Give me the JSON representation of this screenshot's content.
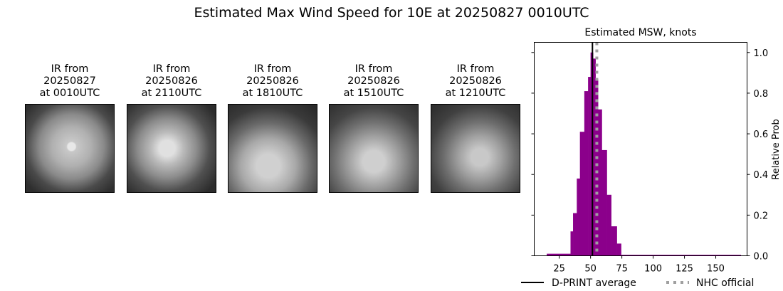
{
  "title": "Estimated Max Wind Speed for 10E at 20250827 0010UTC",
  "panels": [
    {
      "title": "IR from\n20250827\nat 0010UTC"
    },
    {
      "title": "IR from\n20250826\nat 2110UTC"
    },
    {
      "title": "IR from\n20250826\nat 1810UTC"
    },
    {
      "title": "IR from\n20250826\nat 1510UTC"
    },
    {
      "title": "IR from\n20250826\nat 1210UTC"
    }
  ],
  "chart_data": {
    "type": "bar",
    "title": "Estimated MSW, knots",
    "xlabel": "",
    "ylabel": "Relative Prob",
    "xlim": [
      5,
      175
    ],
    "ylim": [
      0,
      1.05
    ],
    "xticks": [
      25,
      50,
      75,
      100,
      125,
      150
    ],
    "yticks": [
      0.0,
      0.2,
      0.4,
      0.6,
      0.8,
      1.0
    ],
    "bar_color": "#8b008b",
    "bins": [
      {
        "from": 15,
        "to": 34,
        "value": 0.01
      },
      {
        "from": 34,
        "to": 36,
        "value": 0.12
      },
      {
        "from": 36,
        "to": 39,
        "value": 0.21
      },
      {
        "from": 39,
        "to": 41.5,
        "value": 0.38
      },
      {
        "from": 41.5,
        "to": 45,
        "value": 0.61
      },
      {
        "from": 45,
        "to": 48,
        "value": 0.81
      },
      {
        "from": 48,
        "to": 50,
        "value": 0.88
      },
      {
        "from": 50,
        "to": 52,
        "value": 1.0
      },
      {
        "from": 52,
        "to": 54,
        "value": 0.97
      },
      {
        "from": 54,
        "to": 56,
        "value": 0.87
      },
      {
        "from": 56,
        "to": 59,
        "value": 0.72
      },
      {
        "from": 59,
        "to": 63,
        "value": 0.52
      },
      {
        "from": 63,
        "to": 66.5,
        "value": 0.3
      },
      {
        "from": 66.5,
        "to": 71,
        "value": 0.145
      },
      {
        "from": 71,
        "to": 74.4,
        "value": 0.06
      },
      {
        "from": 74.4,
        "to": 170,
        "value": 0.005
      }
    ],
    "lines": [
      {
        "name": "D-PRINT average",
        "x": 51.5,
        "color": "#000000",
        "style": "solid"
      },
      {
        "name": "NHC official",
        "x": 55,
        "color": "#a0a0a0",
        "style": "dotted"
      }
    ],
    "legend": "bottom"
  }
}
